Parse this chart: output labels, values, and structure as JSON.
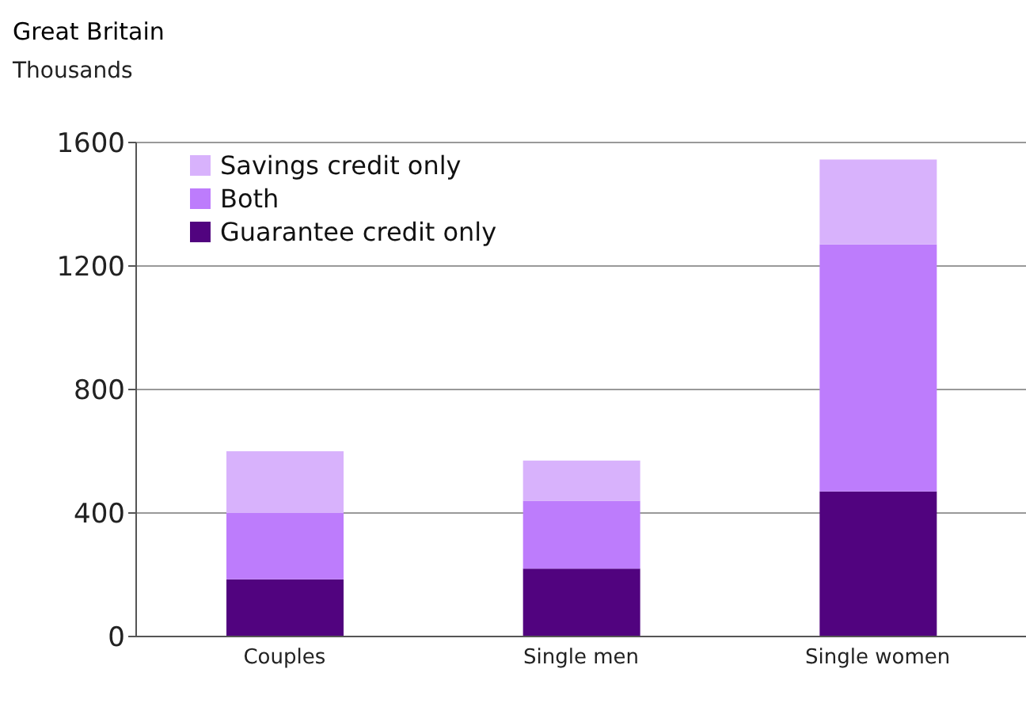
{
  "chart_data": {
    "type": "bar",
    "title": "Great Britain",
    "subtitle": "Thousands",
    "categories": [
      "Couples",
      "Single men",
      "Single women"
    ],
    "series": [
      {
        "name": "Guarantee credit only",
        "color": "#51037f",
        "values": [
          185,
          220,
          470
        ]
      },
      {
        "name": "Both",
        "color": "#bd7cfc",
        "values": [
          215,
          220,
          800
        ]
      },
      {
        "name": "Savings credit only",
        "color": "#d8b2fc",
        "values": [
          200,
          130,
          275
        ]
      }
    ],
    "stacked": true,
    "ylim": [
      0,
      1600
    ],
    "yticks": [
      0,
      400,
      800,
      1200,
      1600
    ],
    "grid": "y",
    "legend": "top left"
  }
}
